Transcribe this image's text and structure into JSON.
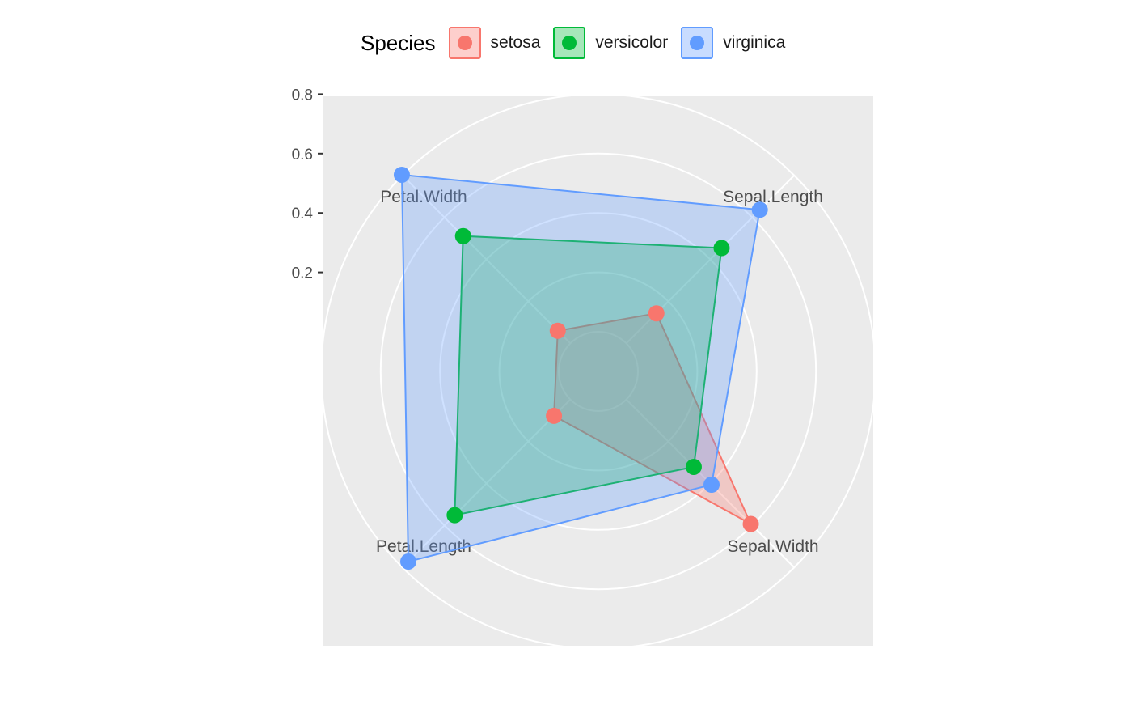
{
  "chart_data": {
    "type": "radar",
    "axes": [
      "Sepal.Length",
      "Sepal.Width",
      "Petal.Length",
      "Petal.Width"
    ],
    "y_ticks": [
      "0.2",
      "0.4",
      "0.6",
      "0.8"
    ],
    "ylim": [
      0,
      0.8
    ],
    "legend": {
      "title": "Species",
      "position": "top"
    },
    "grid": true,
    "series": [
      {
        "name": "setosa",
        "color": "#F8766D",
        "values": [
          0.143,
          0.593,
          0.078,
          0.06
        ]
      },
      {
        "name": "versicolor",
        "color": "#00BA38",
        "values": [
          0.454,
          0.321,
          0.551,
          0.511
        ]
      },
      {
        "name": "virginica",
        "color": "#619CFF",
        "values": [
          0.636,
          0.406,
          0.772,
          0.803
        ]
      }
    ]
  }
}
